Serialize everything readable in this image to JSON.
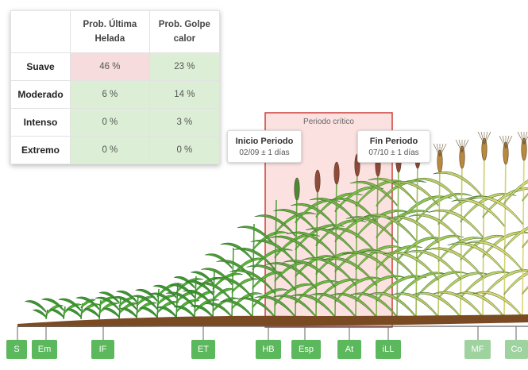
{
  "risk_table": {
    "col_headers": [
      "Prob. Última Helada",
      "Prob. Golpe calor"
    ],
    "rows": [
      {
        "label": "Suave",
        "frost": "46 %",
        "heat": "23 %"
      },
      {
        "label": "Moderado",
        "frost": "6 %",
        "heat": "14 %"
      },
      {
        "label": "Intenso",
        "frost": "0 %",
        "heat": "3 %"
      },
      {
        "label": "Extremo",
        "frost": "0 %",
        "heat": "0 %"
      }
    ]
  },
  "critical_period": {
    "label": "Periodo crítico",
    "start": {
      "title": "Inicio Periodo",
      "date": "02/09 ± 1 días"
    },
    "end": {
      "title": "Fin Periodo",
      "date": "07/10 ± 1 días"
    }
  },
  "stages": [
    "S",
    "Em",
    "IF",
    "ET",
    "HB",
    "Esp",
    "At",
    "iLL",
    "MF",
    "Co"
  ],
  "colors": {
    "stage_button": "#5cb85c",
    "stage_button_faded": "#9ed29e",
    "critical_fill": "#fbd4d4",
    "critical_border": "#c9302c",
    "low_risk_cell": "#dcefd6",
    "high_risk_cell": "#f6dcdc",
    "soil": "#7a4a22"
  }
}
